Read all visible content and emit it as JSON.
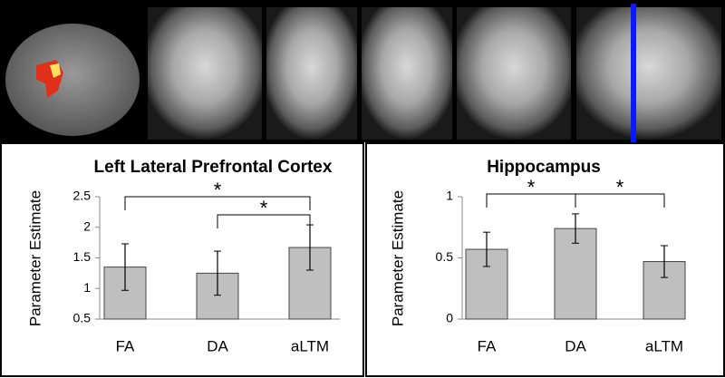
{
  "chart_data": [
    {
      "type": "bar",
      "title": "Left Lateral Prefrontal Cortex",
      "y_label": "Parameter Estimate",
      "categories": [
        "FA",
        "DA",
        "aLTM"
      ],
      "values": [
        1.35,
        1.25,
        1.67
      ],
      "errors": [
        0.38,
        0.36,
        0.37
      ],
      "color": "#bfbfbf",
      "ylim": [
        0.5,
        2.5
      ],
      "yticks": [
        0.5,
        1,
        1.5,
        2,
        2.5
      ],
      "annotations": [
        {
          "label": "*",
          "between": [
            "FA",
            "aLTM"
          ]
        },
        {
          "label": "*",
          "between": [
            "DA",
            "aLTM"
          ]
        }
      ]
    },
    {
      "type": "bar",
      "title": "Hippocampus",
      "y_label": "Parameter Estimate",
      "categories": [
        "FA",
        "DA",
        "aLTM"
      ],
      "values": [
        0.57,
        0.74,
        0.47
      ],
      "errors": [
        0.14,
        0.12,
        0.13
      ],
      "color": "#bfbfbf",
      "ylim": [
        0,
        1
      ],
      "yticks": [
        0,
        0.5,
        1
      ],
      "annotations": [
        {
          "label": "*",
          "between": [
            "FA",
            "DA"
          ]
        },
        {
          "label": "*",
          "between": [
            "DA",
            "aLTM"
          ]
        }
      ]
    }
  ]
}
